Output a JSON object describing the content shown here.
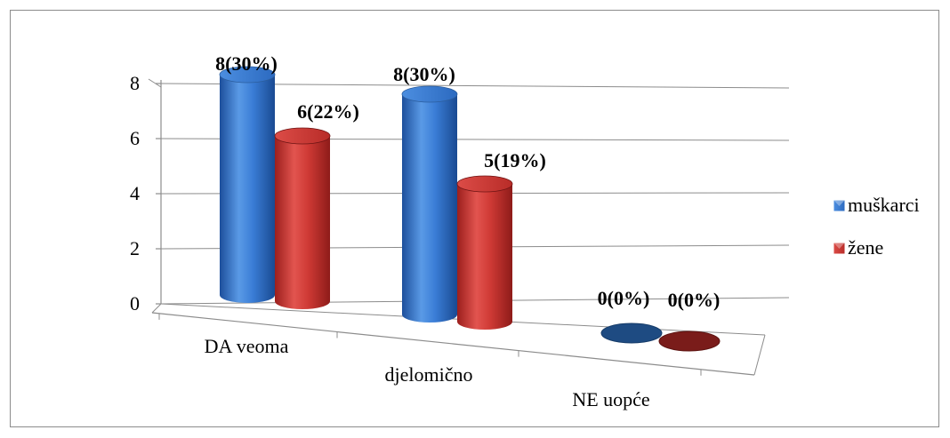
{
  "chart_data": {
    "type": "bar",
    "style": "3d-cylinder",
    "categories": [
      "DA veoma",
      "djelomično",
      "NE uopće"
    ],
    "series": [
      {
        "name": "muškarci",
        "values": [
          8,
          8,
          0
        ],
        "labels": [
          "8(30%)",
          "8(30%)",
          "0(0%)"
        ],
        "color": "#2e73c8"
      },
      {
        "name": "žene",
        "values": [
          6,
          5,
          0
        ],
        "labels": [
          "6(22%)",
          "5(19%)",
          "0(0%)"
        ],
        "color": "#c8312e"
      }
    ],
    "y_ticks": [
      "0",
      "2",
      "4",
      "6",
      "8"
    ],
    "ylim": [
      0,
      8
    ],
    "grid": true,
    "legend": "right",
    "title": "",
    "xlabel": "",
    "ylabel": ""
  }
}
